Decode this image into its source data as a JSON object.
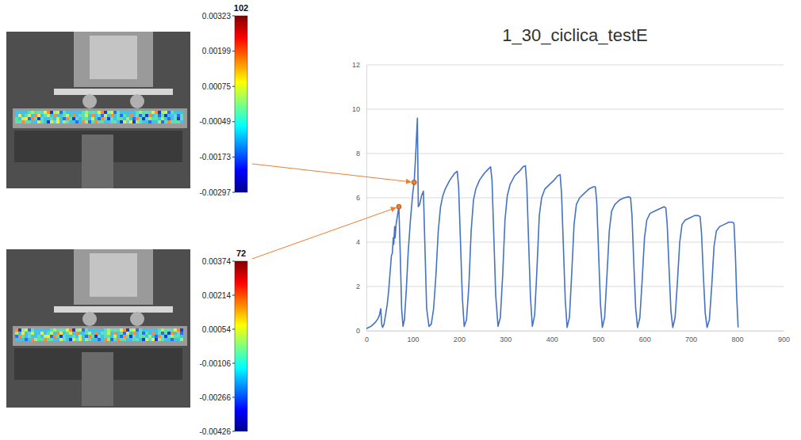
{
  "chart_data": {
    "type": "line",
    "title": "1_30_ciclica_testE",
    "color": "#4472c4",
    "x": [
      0,
      5,
      10,
      15,
      20,
      25,
      28,
      31,
      33,
      35,
      38,
      42,
      45,
      48,
      51,
      54,
      56,
      58,
      59,
      61,
      62,
      64,
      67,
      70,
      73,
      76,
      79,
      82,
      86,
      90,
      95,
      100,
      103,
      106,
      110,
      112,
      115,
      119,
      123,
      126,
      130,
      135,
      140,
      145,
      150,
      155,
      160,
      165,
      170,
      180,
      190,
      196,
      199,
      203,
      207,
      211,
      216,
      221,
      226,
      231,
      236,
      244,
      254,
      263,
      268,
      271,
      275,
      279,
      284,
      289,
      294,
      299,
      304,
      310,
      320,
      330,
      338,
      343,
      346,
      350,
      354,
      358,
      363,
      368,
      373,
      378,
      385,
      395,
      405,
      413,
      418,
      421,
      425,
      429,
      433,
      438,
      443,
      448,
      453,
      460,
      470,
      480,
      490,
      494,
      497,
      501,
      505,
      509,
      514,
      519,
      524,
      529,
      536,
      546,
      556,
      566,
      570,
      573,
      577,
      581,
      585,
      590,
      595,
      600,
      605,
      612,
      622,
      632,
      642,
      646,
      649,
      653,
      657,
      661,
      666,
      671,
      676,
      681,
      688,
      698,
      708,
      716,
      720,
      723,
      727,
      731,
      735,
      740,
      745,
      750,
      755,
      762,
      772,
      782,
      790,
      793,
      796,
      799,
      802
    ],
    "values": [
      0.1,
      0.15,
      0.2,
      0.3,
      0.4,
      0.55,
      0.7,
      1.0,
      0.3,
      0.15,
      0.3,
      0.8,
      1.2,
      1.8,
      2.6,
      3.4,
      3.5,
      4.2,
      3.9,
      4.7,
      4.2,
      4.8,
      5.2,
      5.6,
      3.5,
      1.0,
      0.2,
      0.5,
      1.8,
      3.5,
      5.0,
      6.2,
      6.7,
      7.8,
      9.6,
      5.6,
      5.7,
      6.1,
      6.3,
      4.0,
      1.0,
      0.2,
      0.3,
      1.0,
      2.5,
      4.5,
      5.6,
      6.1,
      6.4,
      6.8,
      7.1,
      7.2,
      6.5,
      4.0,
      1.5,
      0.2,
      0.5,
      2.0,
      4.5,
      5.9,
      6.4,
      6.8,
      7.1,
      7.3,
      7.4,
      6.8,
      4.2,
      1.6,
      0.2,
      0.6,
      2.5,
      5.0,
      6.1,
      6.6,
      7.0,
      7.2,
      7.4,
      7.45,
      6.6,
      4.0,
      1.5,
      0.2,
      0.7,
      2.8,
      5.2,
      6.0,
      6.4,
      6.6,
      6.8,
      7.0,
      7.05,
      6.2,
      3.8,
      1.4,
      0.15,
      0.6,
      2.6,
      4.8,
      5.7,
      6.0,
      6.2,
      6.4,
      6.5,
      6.5,
      5.8,
      3.5,
      1.2,
      0.15,
      0.6,
      2.5,
      4.5,
      5.4,
      5.7,
      5.9,
      6.0,
      6.05,
      6.0,
      5.2,
      3.0,
      1.0,
      0.15,
      0.6,
      2.3,
      4.2,
      5.0,
      5.3,
      5.4,
      5.5,
      5.6,
      5.55,
      4.8,
      2.8,
      0.9,
      0.15,
      0.6,
      2.2,
      4.0,
      4.8,
      5.0,
      5.1,
      5.2,
      5.2,
      5.15,
      4.4,
      2.5,
      0.8,
      0.15,
      0.5,
      2.0,
      3.8,
      4.5,
      4.7,
      4.8,
      4.9,
      4.9,
      4.85,
      3.5,
      1.5,
      0.15
    ],
    "xlim": [
      0,
      900
    ],
    "xticks": [
      0,
      100,
      200,
      300,
      400,
      500,
      600,
      700,
      800,
      900
    ],
    "ylim": [
      0,
      12
    ],
    "yticks": [
      0,
      2,
      4,
      6,
      8,
      10,
      12
    ],
    "grid": true,
    "highlights": [
      {
        "x": 70,
        "y": 5.6
      },
      {
        "x": 103,
        "y": 6.7
      }
    ]
  },
  "colorbars": [
    {
      "frame": 102,
      "lim": [
        -0.00297,
        0.00323
      ],
      "ticks": [
        0.00323,
        0.00199,
        0.00075,
        -0.00049,
        -0.00173,
        -0.00297
      ]
    },
    {
      "frame": 72,
      "lim": [
        -0.00426,
        0.00374
      ],
      "ticks": [
        0.00374,
        0.00214,
        0.00054,
        -0.00106,
        -0.00266,
        -0.00426
      ]
    }
  ]
}
